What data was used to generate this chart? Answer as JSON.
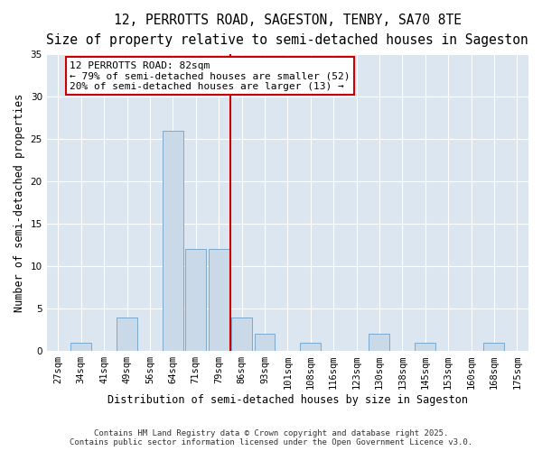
{
  "title": "12, PERROTTS ROAD, SAGESTON, TENBY, SA70 8TE",
  "subtitle": "Size of property relative to semi-detached houses in Sageston",
  "xlabel": "Distribution of semi-detached houses by size in Sageston",
  "ylabel": "Number of semi-detached properties",
  "categories": [
    "27sqm",
    "34sqm",
    "41sqm",
    "49sqm",
    "56sqm",
    "64sqm",
    "71sqm",
    "79sqm",
    "86sqm",
    "93sqm",
    "101sqm",
    "108sqm",
    "116sqm",
    "123sqm",
    "130sqm",
    "138sqm",
    "145sqm",
    "153sqm",
    "160sqm",
    "168sqm",
    "175sqm"
  ],
  "values": [
    0,
    1,
    0,
    4,
    0,
    26,
    12,
    12,
    4,
    2,
    0,
    1,
    0,
    0,
    2,
    0,
    1,
    0,
    0,
    1,
    0
  ],
  "bar_color": "#c9d9e8",
  "bar_edgecolor": "#7baacf",
  "vline_x": 7.5,
  "vline_color": "#cc0000",
  "annotation_title": "12 PERROTTS ROAD: 82sqm",
  "annotation_line1": "← 79% of semi-detached houses are smaller (52)",
  "annotation_line2": "20% of semi-detached houses are larger (13) →",
  "annotation_box_color": "#cc0000",
  "ylim": [
    0,
    35
  ],
  "yticks": [
    0,
    5,
    10,
    15,
    20,
    25,
    30,
    35
  ],
  "background_color": "#dce6f0",
  "footer": "Contains HM Land Registry data © Crown copyright and database right 2025.\nContains public sector information licensed under the Open Government Licence v3.0.",
  "title_fontsize": 10.5,
  "subtitle_fontsize": 9.5,
  "axis_label_fontsize": 8.5,
  "tick_fontsize": 7.5,
  "annotation_fontsize": 8,
  "footer_fontsize": 6.5
}
